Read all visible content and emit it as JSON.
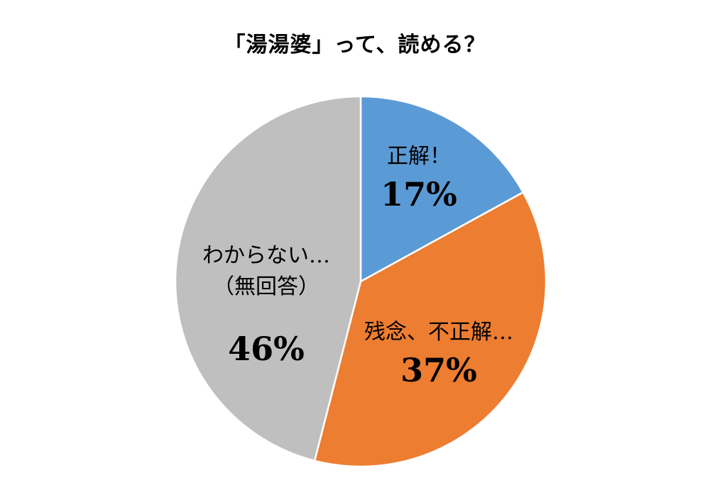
{
  "title": "「湯湯婆」って、読める？",
  "chart_data": {
    "type": "pie",
    "title": "「湯湯婆」って、読める？",
    "slices": [
      {
        "label_lines": [
          "正解！"
        ],
        "pct_label": "17%",
        "value": 17,
        "color": "#5B9BD5"
      },
      {
        "label_lines": [
          "残念、不正解…"
        ],
        "pct_label": "37%",
        "value": 37,
        "color": "#ED7D31"
      },
      {
        "label_lines": [
          "わからない…",
          "（無回答）"
        ],
        "pct_label": "46%",
        "value": 46,
        "color": "#BFBFBF"
      }
    ],
    "start_angle_deg": 0,
    "direction": "clockwise",
    "legend": "none"
  }
}
